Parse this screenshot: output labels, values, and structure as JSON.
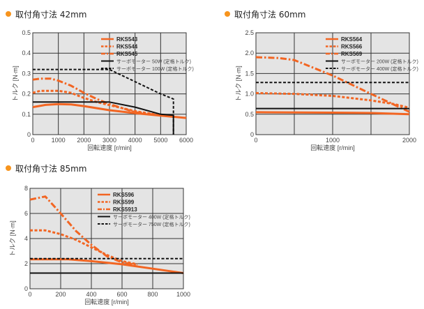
{
  "colors": {
    "orange": "#f26522",
    "black": "#111111",
    "plot_bg": "#e4e4e4",
    "bullet": "#f7941d"
  },
  "chart_data": [
    {
      "type": "line",
      "title": "取付角寸法 42mm",
      "xlabel": "回転速度 [r/min]",
      "ylabel": "トルク [N·m]",
      "xlim": [
        0,
        6000
      ],
      "ylim": [
        0,
        0.5
      ],
      "xticks": [
        "0",
        "1000",
        "2000",
        "3000",
        "4000",
        "5000",
        "6000"
      ],
      "yticks": [
        "0",
        "0.1",
        "0.2",
        "0.3",
        "0.4",
        "0.5"
      ],
      "grid": true,
      "legend": "top-right",
      "series": [
        {
          "name": "RKS543",
          "style": "solid",
          "color": "orange",
          "points": [
            [
              0,
              0.135
            ],
            [
              500,
              0.146
            ],
            [
              1000,
              0.15
            ],
            [
              1500,
              0.148
            ],
            [
              2000,
              0.14
            ],
            [
              3000,
              0.12
            ],
            [
              4000,
              0.105
            ],
            [
              5000,
              0.093
            ],
            [
              6000,
              0.082
            ]
          ]
        },
        {
          "name": "RKS544",
          "style": "dashed",
          "color": "orange",
          "points": [
            [
              0,
              0.205
            ],
            [
              300,
              0.215
            ],
            [
              1000,
              0.215
            ],
            [
              1500,
              0.205
            ],
            [
              2000,
              0.18
            ],
            [
              2500,
              0.16
            ],
            [
              3000,
              0.145
            ],
            [
              4000,
              0.115
            ],
            [
              5000,
              0.095
            ],
            [
              5500,
              0.088
            ]
          ]
        },
        {
          "name": "RKS545",
          "style": "dashdot",
          "color": "orange",
          "points": [
            [
              0,
              0.27
            ],
            [
              300,
              0.275
            ],
            [
              700,
              0.275
            ],
            [
              1000,
              0.265
            ],
            [
              1500,
              0.24
            ],
            [
              2000,
              0.205
            ],
            [
              2500,
              0.175
            ],
            [
              3000,
              0.15
            ],
            [
              3500,
              0.13
            ],
            [
              4000,
              0.11
            ],
            [
              5000,
              0.095
            ],
            [
              5500,
              0.088
            ]
          ]
        },
        {
          "name": "サーボモーター 50W (定格トルク)",
          "style": "solid",
          "color": "black",
          "points": [
            [
              0,
              0.16
            ],
            [
              3000,
              0.16
            ],
            [
              4000,
              0.135
            ],
            [
              5000,
              0.1
            ],
            [
              5500,
              0.095
            ],
            [
              5500,
              0
            ]
          ]
        },
        {
          "name": "サーボモーター 100W (定格トルク)",
          "style": "dashed",
          "color": "black",
          "points": [
            [
              0,
              0.32
            ],
            [
              3000,
              0.32
            ],
            [
              4000,
              0.26
            ],
            [
              5000,
              0.2
            ],
            [
              5500,
              0.175
            ],
            [
              5500,
              0
            ]
          ]
        }
      ]
    },
    {
      "type": "line",
      "title": "取付角寸法 60mm",
      "xlabel": "回転速度 [r/min]",
      "ylabel": "トルク [N·m]",
      "xlim": [
        0,
        2000
      ],
      "ylim": [
        0,
        2.5
      ],
      "xticks": [
        "0",
        "1000",
        "2000"
      ],
      "xgrid": [
        0,
        500,
        1000,
        1500,
        2000
      ],
      "yticks": [
        "0",
        "0.5",
        "1.0",
        "1.5",
        "2.0",
        "2.5"
      ],
      "grid": true,
      "legend": "top-right",
      "series": [
        {
          "name": "RKS564",
          "style": "solid",
          "color": "orange",
          "points": [
            [
              0,
              0.55
            ],
            [
              1000,
              0.54
            ],
            [
              1500,
              0.53
            ],
            [
              2000,
              0.5
            ]
          ]
        },
        {
          "name": "RKS566",
          "style": "dashed",
          "color": "orange",
          "points": [
            [
              0,
              1.02
            ],
            [
              500,
              1.0
            ],
            [
              1000,
              0.95
            ],
            [
              1500,
              0.84
            ],
            [
              1800,
              0.75
            ],
            [
              2000,
              0.66
            ]
          ]
        },
        {
          "name": "RKS569",
          "style": "dashdot",
          "color": "orange",
          "points": [
            [
              0,
              1.9
            ],
            [
              300,
              1.88
            ],
            [
              500,
              1.83
            ],
            [
              1000,
              1.45
            ],
            [
              1500,
              1.0
            ],
            [
              2000,
              0.56
            ]
          ]
        },
        {
          "name": "サーボモーター 200W (定格トルク)",
          "style": "solid",
          "color": "black",
          "points": [
            [
              0,
              0.64
            ],
            [
              2000,
              0.64
            ]
          ]
        },
        {
          "name": "サーボモーター 400W (定格トルク)",
          "style": "dashed",
          "color": "black",
          "points": [
            [
              0,
              1.28
            ],
            [
              2000,
              1.28
            ]
          ]
        }
      ]
    },
    {
      "type": "line",
      "title": "取付角寸法 85mm",
      "xlabel": "回転速度 [r/min]",
      "ylabel": "トルク [N·m]",
      "xlim": [
        0,
        1000
      ],
      "ylim": [
        0,
        8
      ],
      "xticks": [
        "0",
        "200",
        "400",
        "600",
        "800",
        "1000"
      ],
      "yticks": [
        "0",
        "2",
        "4",
        "6",
        "8"
      ],
      "grid": true,
      "legend": "top-right",
      "series": [
        {
          "name": "RKS596",
          "style": "solid",
          "color": "orange",
          "points": [
            [
              0,
              2.35
            ],
            [
              250,
              2.35
            ],
            [
              400,
              2.2
            ],
            [
              600,
              1.95
            ],
            [
              800,
              1.6
            ],
            [
              1000,
              1.25
            ]
          ]
        },
        {
          "name": "RKS599",
          "style": "dashed",
          "color": "orange",
          "points": [
            [
              0,
              4.65
            ],
            [
              100,
              4.65
            ],
            [
              200,
              4.35
            ],
            [
              300,
              3.9
            ],
            [
              400,
              3.3
            ],
            [
              500,
              2.7
            ],
            [
              600,
              2.2
            ],
            [
              700,
              1.95
            ]
          ]
        },
        {
          "name": "RKS5913",
          "style": "dashdot",
          "color": "orange",
          "points": [
            [
              0,
              7.1
            ],
            [
              100,
              7.35
            ],
            [
              200,
              6.0
            ],
            [
              300,
              4.6
            ],
            [
              400,
              3.5
            ],
            [
              500,
              2.6
            ],
            [
              600,
              2.1
            ],
            [
              700,
              1.9
            ]
          ]
        },
        {
          "name": "サーボモーター 400W (定格トルク)",
          "style": "solid",
          "color": "black",
          "points": [
            [
              0,
              1.25
            ],
            [
              1000,
              1.25
            ]
          ]
        },
        {
          "name": "サーボモーター 750W (定格トルク)",
          "style": "dashed",
          "color": "black",
          "points": [
            [
              0,
              2.4
            ],
            [
              1000,
              2.4
            ]
          ]
        }
      ]
    }
  ]
}
